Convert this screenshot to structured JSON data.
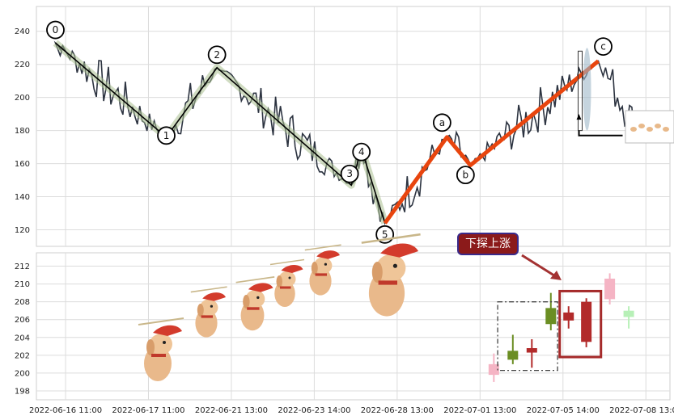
{
  "chart_data": {
    "type": "line",
    "upper_panel": {
      "ylim": [
        110,
        255
      ],
      "yticks": [
        120,
        140,
        160,
        180,
        200,
        220,
        240
      ],
      "price_line_color": "#2c3340",
      "wave_points": [
        {
          "label": "0",
          "t": 0.03,
          "value": 233
        },
        {
          "label": "1",
          "t": 0.205,
          "value": 176
        },
        {
          "label": "2",
          "t": 0.285,
          "value": 218
        },
        {
          "label": "3",
          "t": 0.497,
          "value": 147
        },
        {
          "label": "4",
          "t": 0.513,
          "value": 169
        },
        {
          "label": "5",
          "t": 0.55,
          "value": 124
        },
        {
          "label": "a",
          "t": 0.648,
          "value": 176
        },
        {
          "label": "b",
          "t": 0.685,
          "value": 159
        },
        {
          "label": "c",
          "t": 0.887,
          "value": 222
        }
      ],
      "impulse_color": "#000000",
      "corrective_color": "#e8450e"
    },
    "lower_panel": {
      "type": "candlestick",
      "ylim": [
        197,
        213.5
      ],
      "yticks": [
        198,
        200,
        202,
        204,
        206,
        208,
        210,
        212
      ],
      "candles": [
        {
          "t": 0.722,
          "open": 201.0,
          "close": 199.8,
          "high": 202.2,
          "low": 199.0,
          "color": "#f5b4c4"
        },
        {
          "t": 0.752,
          "open": 201.5,
          "close": 202.5,
          "high": 204.3,
          "low": 201.0,
          "color": "#6b8e23"
        },
        {
          "t": 0.782,
          "open": 202.3,
          "close": 202.8,
          "high": 203.8,
          "low": 200.6,
          "color": "#b22a2a"
        },
        {
          "t": 0.812,
          "open": 205.5,
          "close": 207.3,
          "high": 209.0,
          "low": 204.8,
          "color": "#6b8e23"
        },
        {
          "t": 0.84,
          "open": 206.8,
          "close": 205.9,
          "high": 207.5,
          "low": 205.0,
          "color": "#b22a2a"
        },
        {
          "t": 0.868,
          "open": 208.0,
          "close": 203.5,
          "high": 208.4,
          "low": 202.9,
          "color": "#b22a2a"
        },
        {
          "t": 0.905,
          "open": 208.3,
          "close": 210.6,
          "high": 211.2,
          "low": 207.7,
          "color": "#f5b4c4"
        },
        {
          "t": 0.935,
          "open": 206.3,
          "close": 207.0,
          "high": 207.5,
          "low": 205.0,
          "color": "#b7f0b7"
        }
      ],
      "callout": {
        "text": "下探上涨",
        "bg": "#8b1a1a",
        "border": "#3a2a8a"
      }
    },
    "xtick_labels": [
      "2022-06-16 11:00",
      "2022-06-17 11:00",
      "2022-06-21 13:00",
      "2022-06-23 14:00",
      "2022-06-28 13:00",
      "2022-07-01 13:00",
      "2022-07-05 14:00",
      "2022-07-08 13:00"
    ],
    "grid": true
  }
}
